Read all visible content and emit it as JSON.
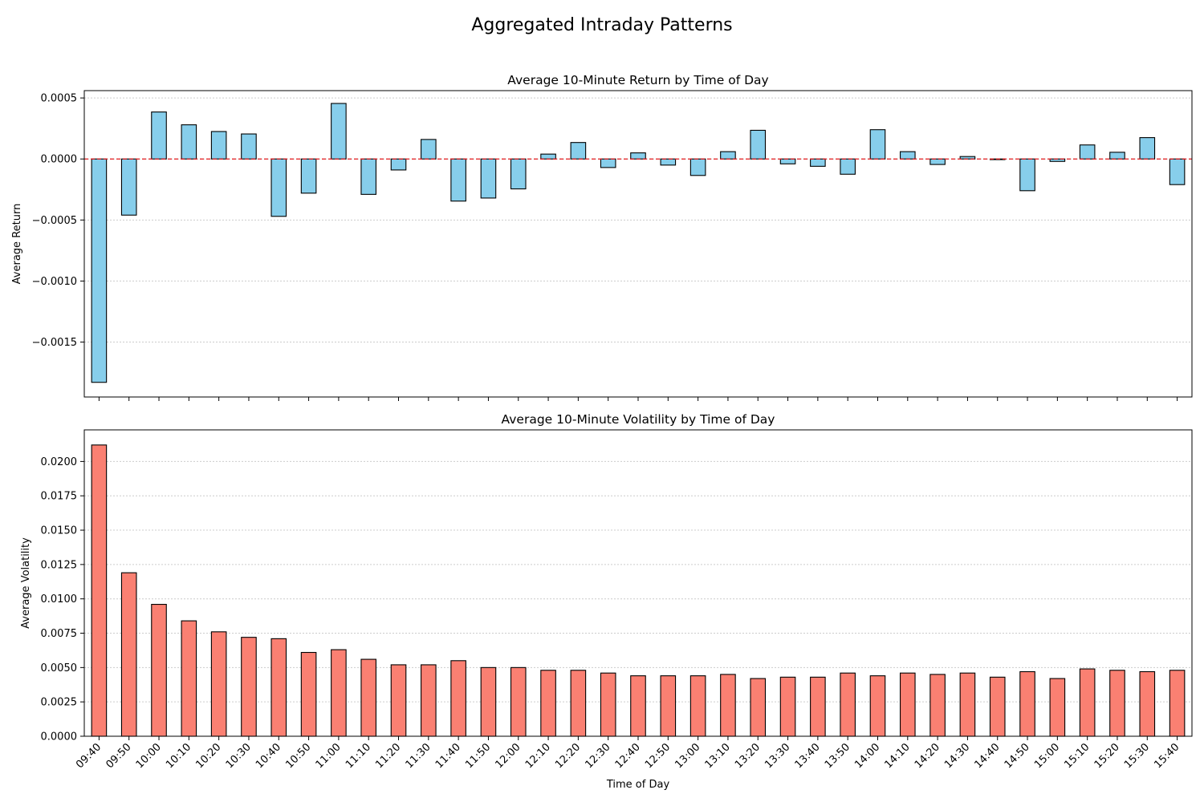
{
  "figure": {
    "suptitle": "Aggregated Intraday Patterns"
  },
  "chart_data": [
    {
      "type": "bar",
      "title": "Average 10-Minute Return by Time of Day",
      "xlabel": "",
      "ylabel": "Average Return",
      "ylim": [
        -0.00195,
        0.00056
      ],
      "yticks": [
        0.0005,
        0.0,
        -0.0005,
        -0.001,
        -0.0015
      ],
      "ytick_labels": [
        "0.0005",
        "0.0000",
        "−0.0005",
        "−0.0010",
        "−0.0015"
      ],
      "grid": "y-dotted",
      "reference_line": {
        "y": 0,
        "color": "#e31a1c",
        "style": "dashed"
      },
      "bar_color": "#87ceeb",
      "categories": [
        "09:40",
        "09:50",
        "10:00",
        "10:10",
        "10:20",
        "10:30",
        "10:40",
        "10:50",
        "11:00",
        "11:10",
        "11:20",
        "11:30",
        "11:40",
        "11:50",
        "12:00",
        "12:10",
        "12:20",
        "12:30",
        "12:40",
        "12:50",
        "13:00",
        "13:10",
        "13:20",
        "13:30",
        "13:40",
        "13:50",
        "14:00",
        "14:10",
        "14:20",
        "14:30",
        "14:40",
        "14:50",
        "15:00",
        "15:10",
        "15:20",
        "15:30",
        "15:40"
      ],
      "values": [
        -0.00183,
        -0.00046,
        0.000385,
        0.00028,
        0.000225,
        0.000205,
        -0.00047,
        -0.00028,
        0.000455,
        -0.00029,
        -9e-05,
        0.00016,
        -0.000345,
        -0.00032,
        -0.000245,
        4e-05,
        0.000135,
        -7e-05,
        5e-05,
        -5e-05,
        -0.000135,
        6e-05,
        0.000235,
        -4e-05,
        -6e-05,
        -0.000125,
        0.00024,
        6e-05,
        -4.5e-05,
        2e-05,
        -5e-06,
        -0.00026,
        -2e-05,
        0.000115,
        5.5e-05,
        0.000175,
        -0.00021
      ]
    },
    {
      "type": "bar",
      "title": "Average 10-Minute Volatility by Time of Day",
      "xlabel": "Time of Day",
      "ylabel": "Average Volatility",
      "ylim": [
        0,
        0.0223
      ],
      "yticks": [
        0.0,
        0.0025,
        0.005,
        0.0075,
        0.01,
        0.0125,
        0.015,
        0.0175,
        0.02
      ],
      "ytick_labels": [
        "0.0000",
        "0.0025",
        "0.0050",
        "0.0075",
        "0.0100",
        "0.0125",
        "0.0150",
        "0.0175",
        "0.0200"
      ],
      "grid": "y-dotted",
      "bar_color": "#fa8072",
      "categories": [
        "09:40",
        "09:50",
        "10:00",
        "10:10",
        "10:20",
        "10:30",
        "10:40",
        "10:50",
        "11:00",
        "11:10",
        "11:20",
        "11:30",
        "11:40",
        "11:50",
        "12:00",
        "12:10",
        "12:20",
        "12:30",
        "12:40",
        "12:50",
        "13:00",
        "13:10",
        "13:20",
        "13:30",
        "13:40",
        "13:50",
        "14:00",
        "14:10",
        "14:20",
        "14:30",
        "14:40",
        "14:50",
        "15:00",
        "15:10",
        "15:20",
        "15:30",
        "15:40"
      ],
      "values": [
        0.0212,
        0.0119,
        0.0096,
        0.0084,
        0.0076,
        0.0072,
        0.0071,
        0.0061,
        0.0063,
        0.0056,
        0.0052,
        0.0052,
        0.0055,
        0.005,
        0.005,
        0.0048,
        0.0048,
        0.0046,
        0.0044,
        0.0044,
        0.0044,
        0.0045,
        0.0042,
        0.0043,
        0.0043,
        0.0046,
        0.0044,
        0.0046,
        0.0045,
        0.0046,
        0.0043,
        0.0047,
        0.0042,
        0.0049,
        0.0048,
        0.0047,
        0.0048
      ]
    }
  ]
}
